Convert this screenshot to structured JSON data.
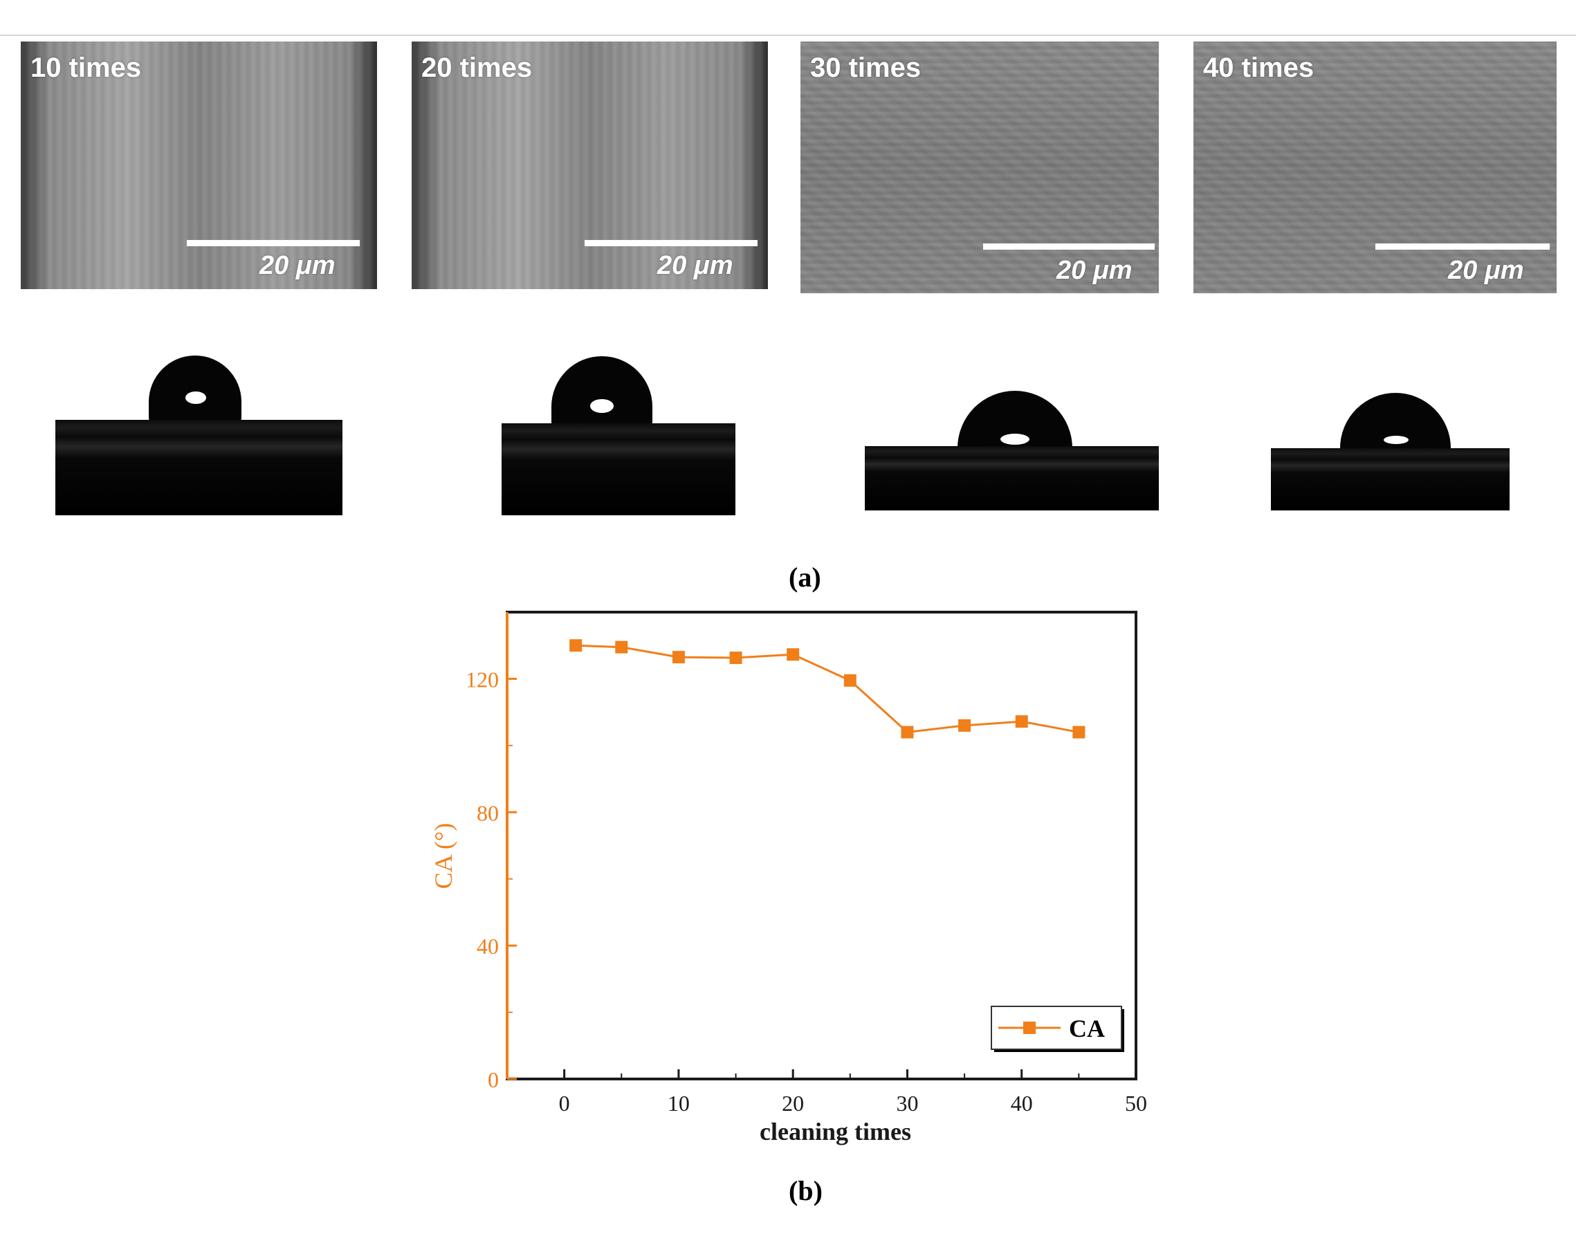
{
  "figure_a": {
    "caption": "(a)",
    "panels": [
      {
        "label": "10 times",
        "scale_text": "20 μm"
      },
      {
        "label": "20 times",
        "scale_text": "20 μm"
      },
      {
        "label": "30 times",
        "scale_text": "20 μm"
      },
      {
        "label": "40 times",
        "scale_text": "20 μm"
      }
    ]
  },
  "figure_b": {
    "caption": "(b)"
  },
  "chart_data": {
    "type": "line",
    "title": "",
    "xlabel": "cleaning times",
    "ylabel": "CA (°)",
    "xlim": [
      -5,
      50
    ],
    "ylim": [
      0,
      140
    ],
    "xticks": [
      0,
      10,
      20,
      30,
      40,
      50
    ],
    "yticks": [
      0,
      40,
      80,
      120
    ],
    "grid": false,
    "legend_position": "bottom-right",
    "series": [
      {
        "name": "CA",
        "color": "#f07f1a",
        "marker": "square",
        "x": [
          1,
          5,
          10,
          15,
          20,
          25,
          30,
          35,
          40,
          45
        ],
        "y": [
          130,
          129.5,
          126.5,
          126.3,
          127.3,
          119.5,
          104,
          106,
          107.2,
          104
        ]
      }
    ]
  },
  "colors": {
    "axis_accent": "#f07f1a",
    "axis": "#1a1a1a"
  }
}
